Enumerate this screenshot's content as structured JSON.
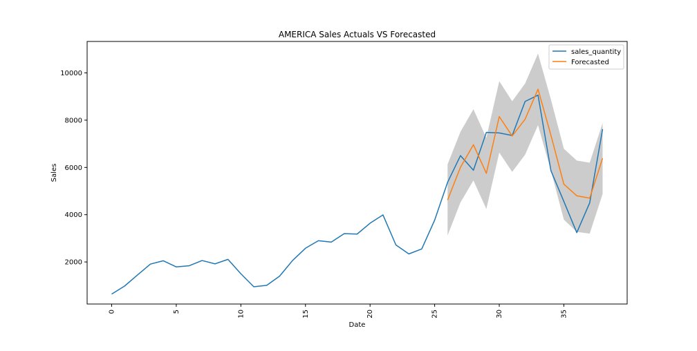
{
  "chart_data": {
    "type": "line",
    "title": "AMERICA Sales Actuals VS Forecasted",
    "xlabel": "Date",
    "ylabel": "Sales",
    "xlim": [
      -1.9,
      39.9
    ],
    "ylim": [
      220,
      11330
    ],
    "xticks": [
      0,
      5,
      10,
      15,
      20,
      25,
      30,
      35
    ],
    "xtick_labels": [
      "0",
      "5",
      "10",
      "15",
      "20",
      "25",
      "30",
      "35"
    ],
    "yticks": [
      2000,
      4000,
      6000,
      8000,
      10000
    ],
    "ytick_labels": [
      "2000",
      "4000",
      "6000",
      "8000",
      "10000"
    ],
    "grid": false,
    "legend": "top-right",
    "series": [
      {
        "name": "sales_quantity",
        "color": "#1f77b4",
        "x": [
          0,
          1,
          2,
          3,
          4,
          5,
          6,
          7,
          8,
          9,
          10,
          11,
          12,
          13,
          14,
          15,
          16,
          17,
          18,
          19,
          20,
          21,
          22,
          23,
          24,
          25,
          26,
          27,
          28,
          29,
          30,
          31,
          32,
          33,
          34,
          35,
          36,
          37,
          38
        ],
        "values": [
          640,
          980,
          1450,
          1910,
          2050,
          1790,
          1840,
          2060,
          1920,
          2110,
          1500,
          950,
          1010,
          1400,
          2060,
          2580,
          2900,
          2840,
          3200,
          3180,
          3640,
          3990,
          2720,
          2340,
          2550,
          3770,
          5370,
          6500,
          5880,
          7480,
          7460,
          7350,
          8790,
          9060,
          5860,
          4560,
          3240,
          4500,
          7620
        ]
      },
      {
        "name": "Forecasted",
        "color": "#ff7f0e",
        "x": [
          26,
          27,
          28,
          29,
          30,
          31,
          32,
          33,
          34,
          35,
          36,
          37,
          38
        ],
        "values": [
          4620,
          6010,
          6960,
          5750,
          8150,
          7330,
          8040,
          9310,
          7360,
          5290,
          4800,
          4700,
          6390
        ],
        "lower": [
          3120,
          4520,
          5450,
          4240,
          6630,
          5810,
          6540,
          7790,
          5860,
          3790,
          3270,
          3200,
          4880
        ],
        "upper": [
          6130,
          7510,
          8460,
          7250,
          9650,
          8800,
          9550,
          10820,
          8870,
          6790,
          6290,
          6200,
          7880
        ]
      }
    ]
  }
}
